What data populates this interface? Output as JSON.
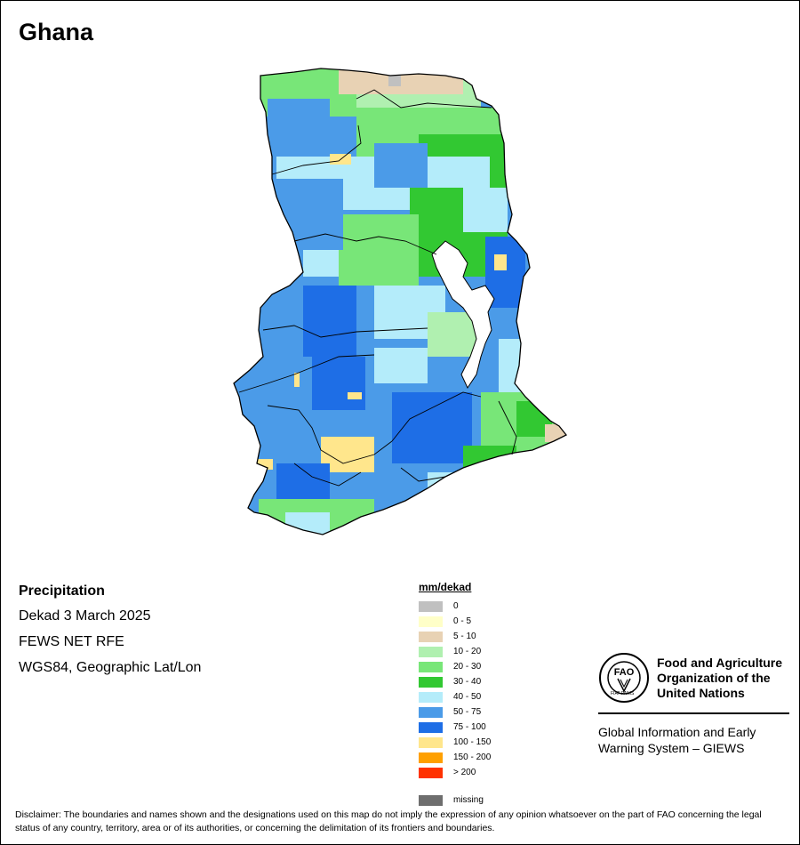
{
  "map": {
    "title": "Ghana",
    "colors": {
      "light_green": "#b0f0b0",
      "green": "#78e678",
      "dark_green": "#32c832",
      "light_cyan": "#b4ecfa",
      "blue": "#4b9be8",
      "dark_blue": "#1e6ee6",
      "yellow": "#ffe68c",
      "tan": "#e8d2b4",
      "gray": "#c0c0c0",
      "boundary": "#000000",
      "lake": "#ffffff"
    }
  },
  "info": {
    "title": "Precipitation",
    "period": "Dekad 3 March 2025",
    "source": "FEWS NET RFE",
    "projection": "WGS84, Geographic Lat/Lon"
  },
  "legend": {
    "title": "mm/dekad",
    "items": [
      {
        "label": "0",
        "color": "#c0c0c0"
      },
      {
        "label": "0 - 5",
        "color": "#ffffc8"
      },
      {
        "label": "5 - 10",
        "color": "#e8d2b4"
      },
      {
        "label": "10 - 20",
        "color": "#b0f0b0"
      },
      {
        "label": "20 - 30",
        "color": "#78e678"
      },
      {
        "label": "30 - 40",
        "color": "#32c832"
      },
      {
        "label": "40 - 50",
        "color": "#b4ecfa"
      },
      {
        "label": "50 - 75",
        "color": "#4b9be8"
      },
      {
        "label": "75 - 100",
        "color": "#1e6ee6"
      },
      {
        "label": "100 - 150",
        "color": "#ffe68c"
      },
      {
        "label": "150 - 200",
        "color": "#ffa000"
      },
      {
        "label": "> 200",
        "color": "#ff3200"
      }
    ],
    "missing": {
      "label": "missing",
      "color": "#6e6e6e"
    }
  },
  "logo": {
    "fao_name": "Food and Agriculture\nOrganization of the\nUnited Nations",
    "fao_letters": "FAO",
    "fiat_panis": "FIAT PANIS",
    "giews": "Global Information and Early\nWarning System – GIEWS"
  },
  "disclaimer": "Disclaimer: The boundaries and names shown and the designations used on this map do not imply the expression of any opinion whatsoever on the part of FAO concerning the legal status of any country, territory, area or of its authorities, or concerning the delimitation of its frontiers and boundaries."
}
